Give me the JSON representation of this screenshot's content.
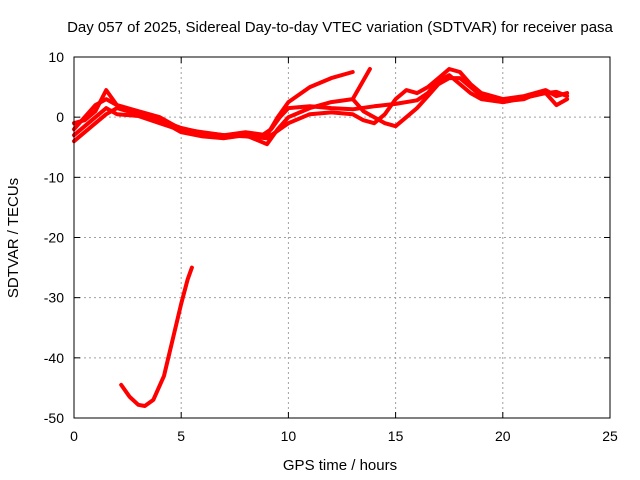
{
  "chart_data": {
    "type": "line",
    "title": "Day 057 of 2025, Sidereal Day-to-day VTEC variation (SDTVAR) for receiver pasa",
    "xlabel": "GPS time / hours",
    "ylabel": "SDTVAR / TECUs",
    "xlim": [
      0,
      25
    ],
    "ylim": [
      -50,
      10
    ],
    "x_ticks": [
      0,
      5,
      10,
      15,
      20,
      25
    ],
    "y_ticks": [
      -50,
      -40,
      -30,
      -20,
      -10,
      0,
      10
    ],
    "grid": true,
    "series_color": "#ff0000",
    "series": [
      {
        "name": "trace-a",
        "points": [
          [
            0,
            -3
          ],
          [
            0.5,
            -1.5
          ],
          [
            1,
            0
          ],
          [
            1.5,
            1.5
          ],
          [
            2,
            0.5
          ],
          [
            3,
            0.2
          ],
          [
            4,
            -1
          ],
          [
            5,
            -2.2
          ],
          [
            6,
            -2.8
          ],
          [
            7,
            -3
          ],
          [
            8,
            -2.8
          ],
          [
            8.7,
            -3.2
          ],
          [
            9.2,
            -2
          ],
          [
            9.6,
            0
          ],
          [
            10,
            1.5
          ],
          [
            11,
            1.8
          ],
          [
            12,
            1.5
          ],
          [
            13,
            1.3
          ],
          [
            14,
            1.8
          ],
          [
            15,
            2.2
          ],
          [
            16,
            2.8
          ],
          [
            16.5,
            4
          ],
          [
            17,
            6
          ],
          [
            17.5,
            7
          ],
          [
            18,
            5.5
          ],
          [
            18.5,
            4
          ],
          [
            19,
            3
          ],
          [
            20,
            2.5
          ],
          [
            21,
            3.2
          ],
          [
            22,
            4
          ],
          [
            22.5,
            4.2
          ],
          [
            23,
            3.5
          ]
        ]
      },
      {
        "name": "trace-b",
        "points": [
          [
            0,
            -4
          ],
          [
            0.5,
            -2.5
          ],
          [
            1,
            -1
          ],
          [
            1.5,
            0.5
          ],
          [
            2,
            1.5
          ],
          [
            3,
            0.5
          ],
          [
            4,
            -0.5
          ],
          [
            5,
            -2.5
          ],
          [
            6,
            -3.2
          ],
          [
            7,
            -3.5
          ],
          [
            8,
            -3
          ],
          [
            9,
            -4.5
          ],
          [
            9.5,
            -2
          ],
          [
            10,
            0
          ],
          [
            11,
            1.5
          ],
          [
            12,
            2.5
          ],
          [
            13,
            3
          ],
          [
            13.8,
            8
          ]
        ]
      },
      {
        "name": "trace-c",
        "points": [
          [
            0,
            -1
          ],
          [
            0.5,
            -0.5
          ],
          [
            1,
            1
          ],
          [
            1.5,
            4.5
          ],
          [
            2,
            2
          ],
          [
            3,
            1
          ],
          [
            4,
            0
          ],
          [
            5,
            -2
          ],
          [
            6,
            -2.5
          ],
          [
            7,
            -3
          ],
          [
            8,
            -2.5
          ],
          [
            9,
            -3
          ],
          [
            9.5,
            0
          ],
          [
            10,
            2.5
          ],
          [
            11,
            5
          ],
          [
            12,
            6.5
          ],
          [
            13,
            7.5
          ]
        ]
      },
      {
        "name": "trace-d",
        "points": [
          [
            0,
            -2
          ],
          [
            1,
            2
          ],
          [
            1.5,
            3
          ],
          [
            2,
            2
          ],
          [
            3,
            0.5
          ],
          [
            4,
            -0.5
          ],
          [
            5,
            -1.8
          ],
          [
            6,
            -2.6
          ],
          [
            7,
            -3
          ],
          [
            8,
            -3.2
          ],
          [
            9,
            -3.5
          ],
          [
            10,
            -1
          ],
          [
            11,
            0.5
          ],
          [
            12,
            0.8
          ],
          [
            13,
            0.5
          ],
          [
            13.5,
            -0.5
          ],
          [
            14,
            -1
          ],
          [
            14.5,
            0.5
          ],
          [
            15,
            3
          ],
          [
            15.5,
            4.5
          ],
          [
            16,
            4
          ],
          [
            16.5,
            5
          ],
          [
            17,
            6.5
          ],
          [
            17.5,
            8
          ],
          [
            18,
            7.5
          ],
          [
            18.5,
            5.5
          ],
          [
            19,
            4
          ],
          [
            20,
            3
          ],
          [
            21,
            3.5
          ],
          [
            22,
            4.5
          ],
          [
            22.5,
            3.5
          ],
          [
            23,
            4
          ]
        ]
      },
      {
        "name": "trace-e",
        "points": [
          [
            13,
            3
          ],
          [
            13.5,
            1
          ],
          [
            14,
            0
          ],
          [
            14.5,
            -1
          ],
          [
            15,
            -1.5
          ],
          [
            15.5,
            0
          ],
          [
            16,
            1.5
          ],
          [
            16.5,
            3.5
          ],
          [
            17,
            5.5
          ],
          [
            17.5,
            6.5
          ],
          [
            18,
            6.5
          ],
          [
            18.5,
            5
          ],
          [
            19,
            3.5
          ],
          [
            20,
            2.5
          ],
          [
            20.5,
            2.8
          ],
          [
            21,
            3
          ],
          [
            21.5,
            3.8
          ],
          [
            22,
            4
          ],
          [
            22.5,
            2
          ],
          [
            23,
            3
          ]
        ]
      },
      {
        "name": "trace-f",
        "points": [
          [
            2.2,
            -44.5
          ],
          [
            2.6,
            -46.5
          ],
          [
            3,
            -47.8
          ],
          [
            3.3,
            -48
          ],
          [
            3.7,
            -47
          ],
          [
            4.2,
            -43
          ],
          [
            4.6,
            -37
          ],
          [
            5,
            -31
          ],
          [
            5.3,
            -27
          ],
          [
            5.5,
            -25
          ]
        ]
      }
    ]
  }
}
